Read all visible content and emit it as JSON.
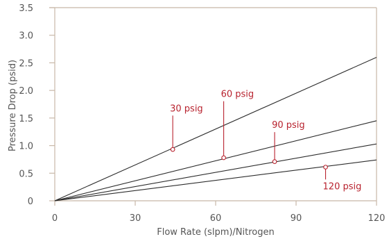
{
  "chart_data": {
    "type": "line",
    "xlabel": "Flow Rate (slpm)/Nitrogen",
    "ylabel": "Pressure Drop (psid)",
    "xlim": [
      0,
      120
    ],
    "ylim": [
      0,
      3.5
    ],
    "x_ticks": [
      0,
      30,
      60,
      90,
      120
    ],
    "y_ticks": [
      0,
      0.5,
      1.0,
      1.5,
      2.0,
      2.5,
      3.0,
      3.5
    ],
    "x_tick_labels": [
      "0",
      "30",
      "60",
      "90",
      "120"
    ],
    "y_tick_labels": [
      "0",
      "0.5",
      "1.0",
      "1.5",
      "2.0",
      "2.5",
      "3.0",
      "3.5"
    ],
    "grid": false,
    "series": [
      {
        "x": [
          0,
          120
        ],
        "values": [
          0,
          2.6
        ]
      },
      {
        "x": [
          0,
          120
        ],
        "values": [
          0,
          1.45
        ]
      },
      {
        "x": [
          0,
          120
        ],
        "values": [
          0,
          1.03
        ]
      },
      {
        "x": [
          0,
          120
        ],
        "values": [
          0,
          0.74
        ]
      }
    ],
    "annotations": [
      {
        "text": "30 psig",
        "x": 44,
        "y": 0.93,
        "label_y": 1.62,
        "position": "above"
      },
      {
        "text": "60 psig",
        "x": 63,
        "y": 0.78,
        "label_y": 1.88,
        "position": "above"
      },
      {
        "text": "90 psig",
        "x": 82,
        "y": 0.71,
        "label_y": 1.32,
        "position": "above"
      },
      {
        "text": "120 psig",
        "x": 101,
        "y": 0.61,
        "label_y": 0.21,
        "position": "below"
      }
    ]
  },
  "colors": {
    "axis": "#c8b8a8",
    "line": "#2b2b2b",
    "annotation": "#b8222e",
    "text": "#555555"
  }
}
